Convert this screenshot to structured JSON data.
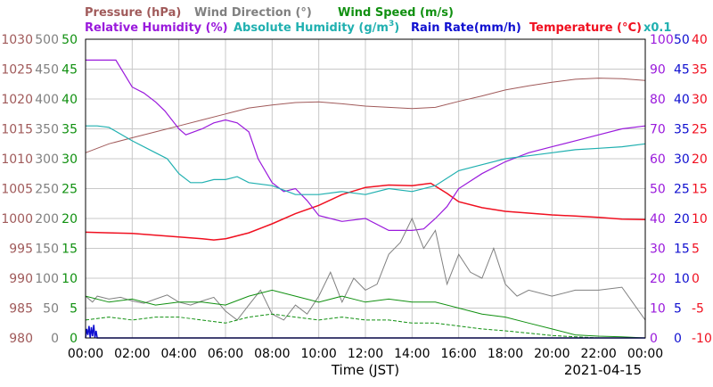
{
  "chart_data": {
    "type": "line",
    "legend": {
      "pressure": {
        "label": "Pressure (hPa)",
        "color": "#a05a5a"
      },
      "wind_direction": {
        "label": "Wind Direction (°)",
        "color": "#808080"
      },
      "wind_speed": {
        "label": "Wind Speed (m/s)",
        "color": "#109010"
      },
      "relative_humidity": {
        "label": "Relative Humidity (%)",
        "color": "#9a1adc"
      },
      "absolute_humidity_base": "Absolute Humidity (g/m",
      "absolute_humidity_sup": "3",
      "absolute_humidity_tail": ")",
      "absolute_humidity_color": "#20b0b0",
      "rain_rate": {
        "label": "Rain Rate(mm/h)",
        "color": "#1010d0"
      },
      "temperature": {
        "label": "Temperature (°C)",
        "color": "#f01020"
      },
      "scale_note": "x0.1"
    },
    "xlabel": "Time (JST)",
    "date": "2021-04-15",
    "x_ticks": [
      "00:00",
      "02:00",
      "04:00",
      "06:00",
      "08:00",
      "10:00",
      "12:00",
      "14:00",
      "16:00",
      "18:00",
      "20:00",
      "22:00",
      "00:00"
    ],
    "x_range_hours": [
      0,
      24
    ],
    "axes": {
      "pressure": {
        "ticks": [
          "980",
          "985",
          "990",
          "995",
          "1000",
          "1005",
          "1010",
          "1015",
          "1020",
          "1025",
          "1030"
        ],
        "range": [
          980,
          1030
        ]
      },
      "wind_direction": {
        "ticks": [
          "0",
          "50",
          "100",
          "150",
          "200",
          "250",
          "300",
          "350",
          "400",
          "450",
          "500"
        ],
        "range": [
          0,
          500
        ]
      },
      "wind_speed": {
        "ticks": [
          "0",
          "5",
          "10",
          "15",
          "20",
          "25",
          "30",
          "35",
          "40",
          "45",
          "50"
        ],
        "range": [
          0,
          50
        ]
      },
      "relative_humidity": {
        "ticks": [
          "0",
          "10",
          "20",
          "30",
          "40",
          "50",
          "60",
          "70",
          "80",
          "90",
          "100"
        ],
        "range": [
          0,
          100
        ]
      },
      "rain_rate": {
        "ticks": [
          "0",
          "5",
          "10",
          "15",
          "20",
          "25",
          "30",
          "35",
          "40",
          "45",
          "50"
        ],
        "range": [
          0,
          50
        ]
      },
      "temperature": {
        "ticks": [
          "-10",
          "-5",
          "0",
          "5",
          "10",
          "15",
          "20",
          "25",
          "30",
          "35",
          "40"
        ],
        "range": [
          -10,
          40
        ]
      }
    },
    "series": [
      {
        "name": "Pressure (hPa)",
        "key": "pressure",
        "color": "#a05a5a",
        "width": 1,
        "points": [
          [
            0,
            1011
          ],
          [
            1,
            1012.5
          ],
          [
            2,
            1013.5
          ],
          [
            3,
            1014.5
          ],
          [
            4,
            1015.5
          ],
          [
            5,
            1016.5
          ],
          [
            6,
            1017.5
          ],
          [
            7,
            1018.5
          ],
          [
            8,
            1019
          ],
          [
            9,
            1019.4
          ],
          [
            10,
            1019.5
          ],
          [
            11,
            1019.2
          ],
          [
            12,
            1018.8
          ],
          [
            13,
            1018.6
          ],
          [
            14,
            1018.4
          ],
          [
            15,
            1018.6
          ],
          [
            16,
            1019.6
          ],
          [
            17,
            1020.5
          ],
          [
            18,
            1021.5
          ],
          [
            19,
            1022.2
          ],
          [
            20,
            1022.8
          ],
          [
            21,
            1023.3
          ],
          [
            22,
            1023.5
          ],
          [
            23,
            1023.4
          ],
          [
            24,
            1023.1
          ]
        ]
      },
      {
        "name": "Temperature (°C)",
        "key": "temperature",
        "color": "#f01020",
        "width": 1.5,
        "points": [
          [
            0,
            7.7
          ],
          [
            1,
            7.6
          ],
          [
            2,
            7.5
          ],
          [
            3,
            7.2
          ],
          [
            4,
            6.9
          ],
          [
            5,
            6.6
          ],
          [
            5.5,
            6.4
          ],
          [
            6,
            6.6
          ],
          [
            7,
            7.6
          ],
          [
            8,
            9.1
          ],
          [
            9,
            10.8
          ],
          [
            10,
            12.2
          ],
          [
            11,
            14
          ],
          [
            12,
            15.2
          ],
          [
            13,
            15.6
          ],
          [
            14,
            15.5
          ],
          [
            14.8,
            15.9
          ],
          [
            15.5,
            14.2
          ],
          [
            16,
            12.8
          ],
          [
            17,
            11.8
          ],
          [
            18,
            11.2
          ],
          [
            19,
            10.9
          ],
          [
            20,
            10.6
          ],
          [
            21,
            10.4
          ],
          [
            22,
            10.2
          ],
          [
            23,
            9.9
          ],
          [
            24,
            9.8
          ]
        ]
      },
      {
        "name": "Relative Humidity (%)",
        "key": "relative_humidity",
        "color": "#9a1adc",
        "width": 1.2,
        "points": [
          [
            0,
            93
          ],
          [
            1,
            93
          ],
          [
            1.3,
            93
          ],
          [
            2,
            84
          ],
          [
            2.5,
            82
          ],
          [
            3,
            79
          ],
          [
            3.4,
            76
          ],
          [
            4,
            70
          ],
          [
            4.3,
            68
          ],
          [
            5,
            70
          ],
          [
            5.5,
            72
          ],
          [
            6,
            73
          ],
          [
            6.5,
            72
          ],
          [
            7,
            69
          ],
          [
            7.4,
            60
          ],
          [
            8,
            52
          ],
          [
            8.5,
            49
          ],
          [
            9,
            50
          ],
          [
            9.5,
            46
          ],
          [
            10,
            41
          ],
          [
            11,
            39
          ],
          [
            12,
            40
          ],
          [
            13,
            36
          ],
          [
            14,
            36
          ],
          [
            14.5,
            36.5
          ],
          [
            15,
            40
          ],
          [
            15.5,
            44
          ],
          [
            16,
            50
          ],
          [
            17,
            55
          ],
          [
            18,
            59
          ],
          [
            19,
            62
          ],
          [
            20,
            64
          ],
          [
            21,
            66
          ],
          [
            22,
            68
          ],
          [
            23,
            70
          ],
          [
            24,
            71
          ]
        ]
      },
      {
        "name": "Absolute Humidity (g/m3)",
        "key": "relative_humidity",
        "color": "#20b0b0",
        "width": 1.2,
        "points": [
          [
            0,
            71
          ],
          [
            0.5,
            71
          ],
          [
            1,
            70.5
          ],
          [
            2,
            66
          ],
          [
            3,
            62
          ],
          [
            3.5,
            60
          ],
          [
            4,
            55
          ],
          [
            4.5,
            52
          ],
          [
            5,
            52
          ],
          [
            5.5,
            53
          ],
          [
            6,
            53
          ],
          [
            6.5,
            54
          ],
          [
            7,
            52
          ],
          [
            8,
            51
          ],
          [
            9,
            48
          ],
          [
            10,
            48
          ],
          [
            11,
            49
          ],
          [
            12,
            48
          ],
          [
            13,
            50
          ],
          [
            14,
            49
          ],
          [
            15,
            51
          ],
          [
            16,
            56
          ],
          [
            17,
            58
          ],
          [
            18,
            60
          ],
          [
            19,
            61
          ],
          [
            20,
            62
          ],
          [
            21,
            63
          ],
          [
            22,
            63.5
          ],
          [
            23,
            64
          ],
          [
            24,
            65
          ]
        ]
      },
      {
        "name": "Wind Direction (°)",
        "key": "wind_direction",
        "color": "#808080",
        "width": 1,
        "points": [
          [
            0,
            70
          ],
          [
            0.3,
            60
          ],
          [
            0.5,
            70
          ],
          [
            1,
            65
          ],
          [
            1.5,
            68
          ],
          [
            2,
            62
          ],
          [
            2.5,
            58
          ],
          [
            3,
            65
          ],
          [
            3.5,
            72
          ],
          [
            4,
            60
          ],
          [
            4.5,
            55
          ],
          [
            5,
            62
          ],
          [
            5.5,
            68
          ],
          [
            6,
            45
          ],
          [
            6.5,
            30
          ],
          [
            7,
            55
          ],
          [
            7.5,
            80
          ],
          [
            8,
            40
          ],
          [
            8.5,
            30
          ],
          [
            9,
            55
          ],
          [
            9.5,
            40
          ],
          [
            10,
            70
          ],
          [
            10.5,
            110
          ],
          [
            11,
            60
          ],
          [
            11.5,
            100
          ],
          [
            12,
            80
          ],
          [
            12.5,
            90
          ],
          [
            13,
            140
          ],
          [
            13.5,
            160
          ],
          [
            14,
            200
          ],
          [
            14.5,
            150
          ],
          [
            15,
            180
          ],
          [
            15.5,
            90
          ],
          [
            16,
            140
          ],
          [
            16.5,
            110
          ],
          [
            17,
            100
          ],
          [
            17.5,
            150
          ],
          [
            18,
            90
          ],
          [
            18.5,
            70
          ],
          [
            19,
            80
          ],
          [
            20,
            70
          ],
          [
            21,
            80
          ],
          [
            22,
            80
          ],
          [
            23,
            85
          ],
          [
            24,
            30
          ]
        ]
      },
      {
        "name": "Wind Speed (m/s)",
        "key": "wind_speed",
        "color": "#109010",
        "width": 1,
        "points": [
          [
            0,
            7
          ],
          [
            1,
            6
          ],
          [
            2,
            6.5
          ],
          [
            3,
            5.5
          ],
          [
            4,
            6
          ],
          [
            5,
            6
          ],
          [
            6,
            5.5
          ],
          [
            7,
            7
          ],
          [
            8,
            8
          ],
          [
            9,
            7
          ],
          [
            10,
            6
          ],
          [
            11,
            7
          ],
          [
            12,
            6
          ],
          [
            13,
            6.5
          ],
          [
            14,
            6
          ],
          [
            15,
            6
          ],
          [
            16,
            5
          ],
          [
            17,
            4
          ],
          [
            18,
            3.5
          ],
          [
            19,
            2.5
          ],
          [
            20,
            1.5
          ],
          [
            21,
            0.5
          ],
          [
            22,
            0.3
          ],
          [
            23,
            0.2
          ],
          [
            24,
            0
          ]
        ]
      },
      {
        "name": "Wind Speed gust (m/s)",
        "key": "wind_speed",
        "color": "#109010",
        "width": 1,
        "dash": "4,2",
        "points": [
          [
            0,
            3
          ],
          [
            1,
            3.5
          ],
          [
            2,
            3
          ],
          [
            3,
            3.5
          ],
          [
            4,
            3.5
          ],
          [
            5,
            3
          ],
          [
            6,
            2.5
          ],
          [
            7,
            3.5
          ],
          [
            8,
            4
          ],
          [
            9,
            3.5
          ],
          [
            10,
            3
          ],
          [
            11,
            3.5
          ],
          [
            12,
            3
          ],
          [
            13,
            3
          ],
          [
            14,
            2.5
          ],
          [
            15,
            2.5
          ],
          [
            16,
            2
          ],
          [
            17,
            1.5
          ],
          [
            18,
            1.2
          ],
          [
            19,
            0.8
          ],
          [
            20,
            0.4
          ],
          [
            21,
            0.2
          ],
          [
            22,
            0
          ],
          [
            24,
            0
          ]
        ]
      },
      {
        "name": "Rain Rate(mm/h)",
        "key": "rain_rate",
        "color": "#1010d0",
        "width": 1.5,
        "points": [
          [
            0,
            0
          ],
          [
            0.05,
            1.5
          ],
          [
            0.1,
            0.5
          ],
          [
            0.15,
            2
          ],
          [
            0.2,
            0
          ],
          [
            0.25,
            1.8
          ],
          [
            0.3,
            0.3
          ],
          [
            0.35,
            2.2
          ],
          [
            0.4,
            0
          ],
          [
            0.45,
            1.2
          ],
          [
            0.5,
            0
          ],
          [
            24,
            0
          ]
        ]
      }
    ]
  }
}
